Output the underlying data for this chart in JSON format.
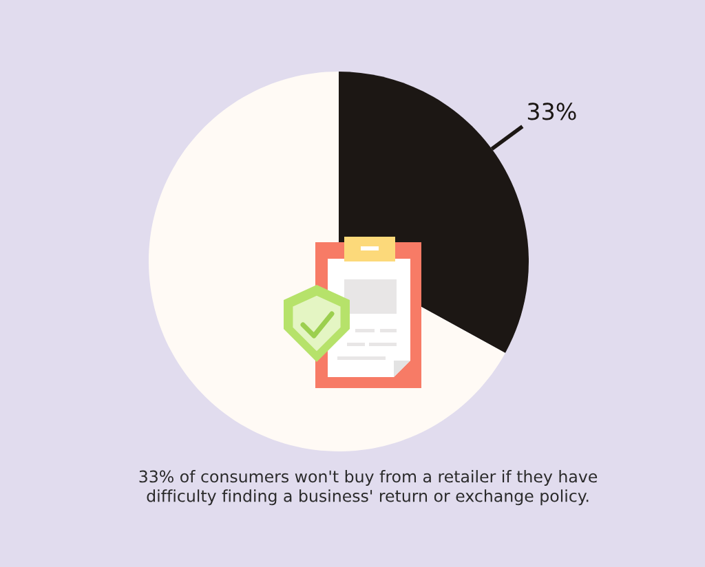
{
  "chart_data": {
    "type": "pie",
    "categories": [
      null,
      null
    ],
    "values": [
      33,
      67
    ],
    "colors": [
      "#1c1714",
      "#fffaf5"
    ],
    "value_labels": [
      "33%",
      null
    ],
    "annotations": [
      "33% of consumers won't buy from a retailer if they have\ndifficulty finding a business' return or exchange policy."
    ]
  }
}
